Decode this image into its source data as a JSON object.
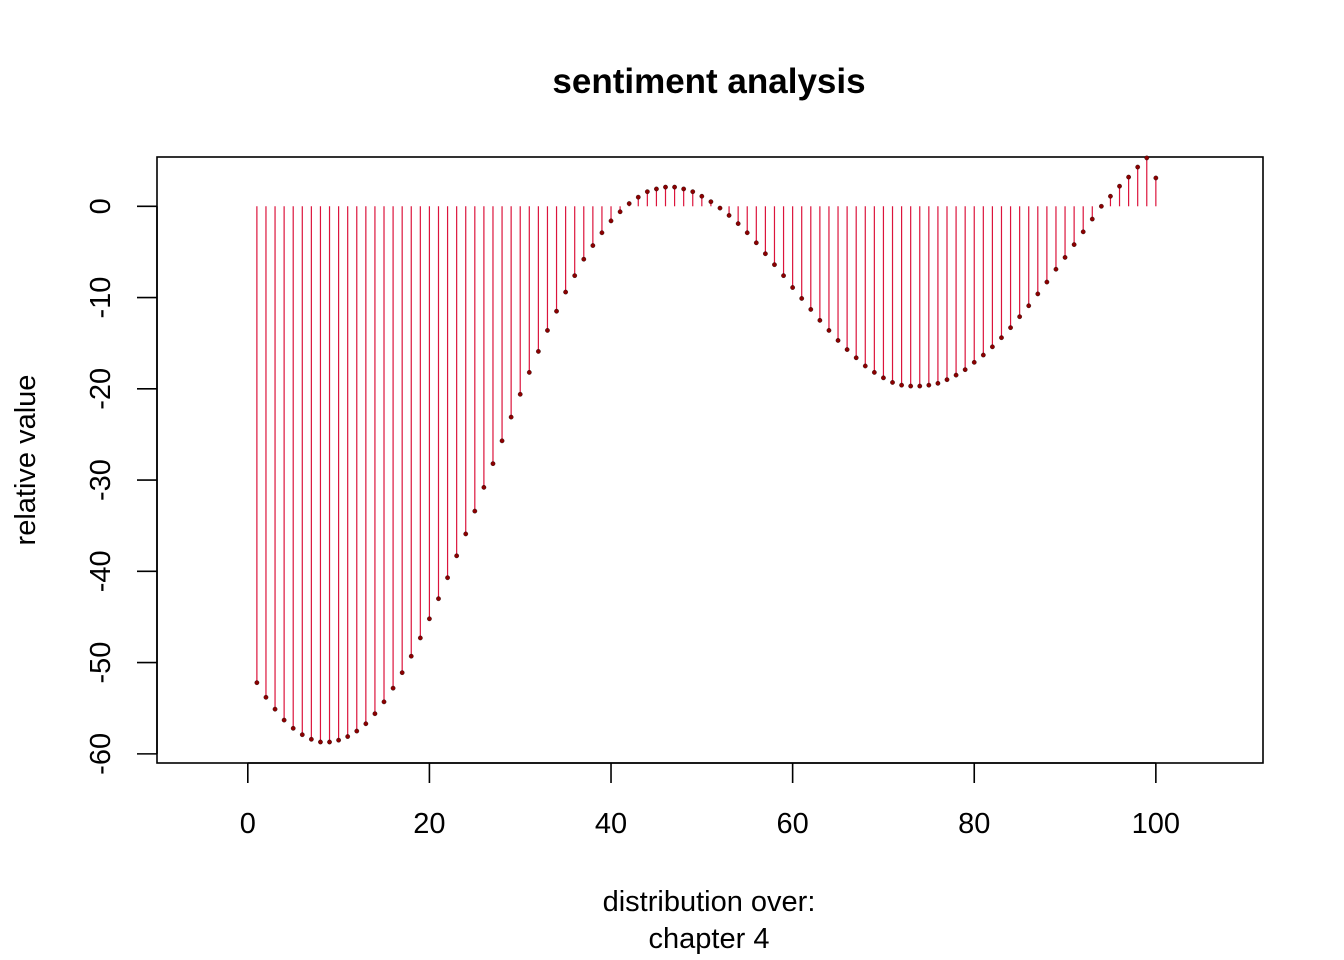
{
  "chart_data": {
    "type": "stem",
    "title": "sentiment analysis",
    "xlabel": [
      "distribution over:",
      "chapter 4"
    ],
    "ylabel": "relative value",
    "xlim": [
      -10,
      111.8
    ],
    "ylim": [
      -61.0,
      5.4
    ],
    "xticks": [
      0,
      20,
      40,
      60,
      80,
      100
    ],
    "yticks": [
      0,
      -10,
      -20,
      -30,
      -40,
      -50,
      -60
    ],
    "stem_color": "#dc143c",
    "point_color": "#8b0000",
    "x": [
      1,
      2,
      3,
      4,
      5,
      6,
      7,
      8,
      9,
      10,
      11,
      12,
      13,
      14,
      15,
      16,
      17,
      18,
      19,
      20,
      21,
      22,
      23,
      24,
      25,
      26,
      27,
      28,
      29,
      30,
      31,
      32,
      33,
      34,
      35,
      36,
      37,
      38,
      39,
      40,
      41,
      42,
      43,
      44,
      45,
      46,
      47,
      48,
      49,
      50,
      51,
      52,
      53,
      54,
      55,
      56,
      57,
      58,
      59,
      60,
      61,
      62,
      63,
      64,
      65,
      66,
      67,
      68,
      69,
      70,
      71,
      72,
      73,
      74,
      75,
      76,
      77,
      78,
      79,
      80,
      81,
      82,
      83,
      84,
      85,
      86,
      87,
      88,
      89,
      90,
      91,
      92,
      93,
      94,
      95,
      96,
      97,
      98,
      99,
      100
    ],
    "y": [
      -52.2,
      -53.8,
      -55.1,
      -56.3,
      -57.2,
      -57.9,
      -58.4,
      -58.7,
      -58.7,
      -58.5,
      -58.1,
      -57.5,
      -56.7,
      -55.6,
      -54.3,
      -52.8,
      -51.1,
      -49.3,
      -47.3,
      -45.2,
      -43.0,
      -40.7,
      -38.3,
      -35.9,
      -33.4,
      -30.8,
      -28.2,
      -25.7,
      -23.1,
      -20.6,
      -18.2,
      -15.9,
      -13.6,
      -11.5,
      -9.4,
      -7.6,
      -5.8,
      -4.3,
      -2.9,
      -1.6,
      -0.6,
      0.3,
      1.0,
      1.6,
      1.9,
      2.1,
      2.1,
      1.9,
      1.6,
      1.1,
      0.5,
      -0.2,
      -1.0,
      -1.9,
      -2.9,
      -4.0,
      -5.2,
      -6.4,
      -7.6,
      -8.9,
      -10.1,
      -11.3,
      -12.5,
      -13.6,
      -14.7,
      -15.7,
      -16.6,
      -17.5,
      -18.2,
      -18.8,
      -19.3,
      -19.6,
      -19.7,
      -19.7,
      -19.6,
      -19.4,
      -19.0,
      -18.5,
      -17.9,
      -17.1,
      -16.3,
      -15.4,
      -14.4,
      -13.3,
      -12.1,
      -10.9,
      -9.6,
      -8.3,
      -6.9,
      -5.6,
      -4.2,
      -2.8,
      -1.4,
      0.0,
      1.1,
      2.2,
      3.2,
      4.3,
      5.3,
      3.1
    ]
  }
}
